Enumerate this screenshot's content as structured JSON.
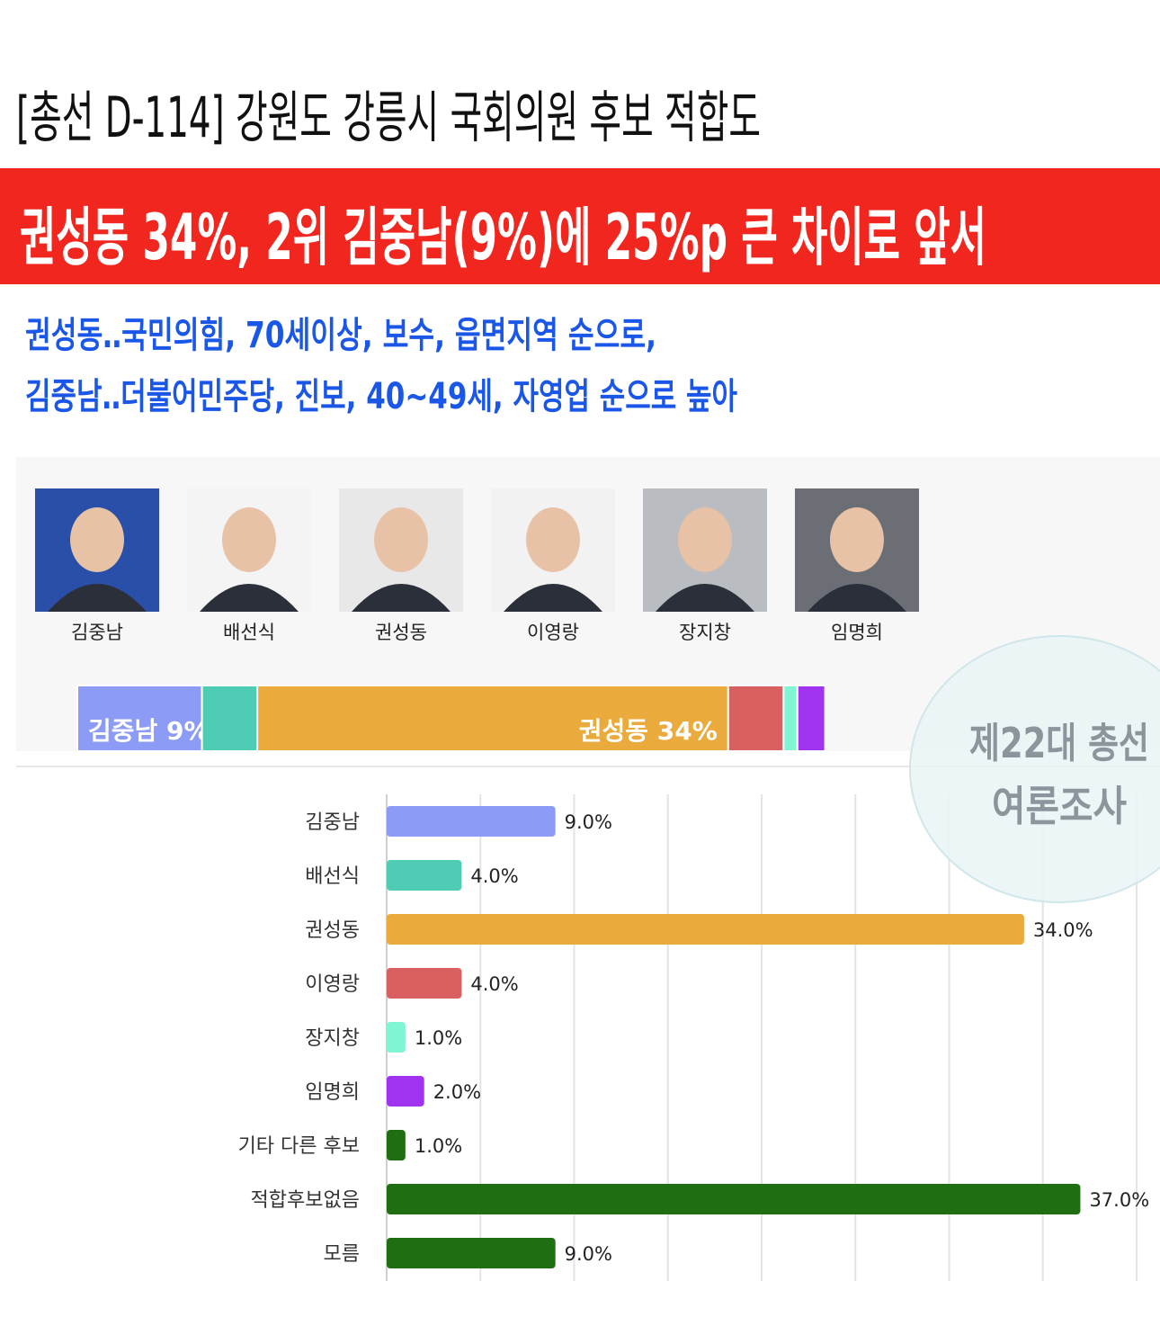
{
  "header": {
    "title": "[총선 D-114] 강원도 강릉시 국회의원 후보 적합도",
    "headline": "권성동 34%, 2위 김중남(9%)에 25%p 큰 차이로 앞서",
    "subtitle": [
      "권성동‥국민의힘, 70세이상, 보수, 읍면지역 순으로,",
      "김중남‥더불어민주당, 진보, 40~49세, 자영업 순으로 높아"
    ]
  },
  "candidates": [
    "김중남",
    "배선식",
    "권성동",
    "이영랑",
    "장지창",
    "임명희"
  ],
  "badge": [
    "제22대 총선",
    "여론조사"
  ],
  "chart_data": [
    {
      "type": "stacked-bar",
      "values": [
        9,
        4,
        34,
        4,
        1,
        2
      ],
      "colors": [
        "#8c9bf5",
        "#4ecdb4",
        "#eaaa3c",
        "#d86060",
        "#7ff5d4",
        "#a033f0"
      ],
      "value_labels": [
        "김중남 9%",
        null,
        "권성동 34%",
        null,
        null,
        null
      ]
    },
    {
      "type": "bar",
      "categories": [
        "김중남",
        "배선식",
        "권성동",
        "이영랑",
        "장지창",
        "임명희",
        "기타 다른 후보",
        "적합후보없음",
        "모름"
      ],
      "values": [
        9,
        4,
        34,
        4,
        1,
        2,
        1,
        37,
        9
      ],
      "value_labels": [
        "9.0%",
        "4.0%",
        "34.0%",
        "4.0%",
        "1.0%",
        "2.0%",
        "1.0%",
        "37.0%",
        "9.0%"
      ],
      "colors": [
        "#8c9bf5",
        "#4ecdb4",
        "#eaaa3c",
        "#d86060",
        "#7ff5d4",
        "#a033f0",
        "#1f6e12",
        "#1f6e12",
        "#1f6e12"
      ],
      "xlim": [
        0,
        40
      ],
      "xticks": [
        0,
        5,
        10,
        15,
        20,
        25,
        30,
        35,
        40
      ],
      "grid": true
    }
  ]
}
